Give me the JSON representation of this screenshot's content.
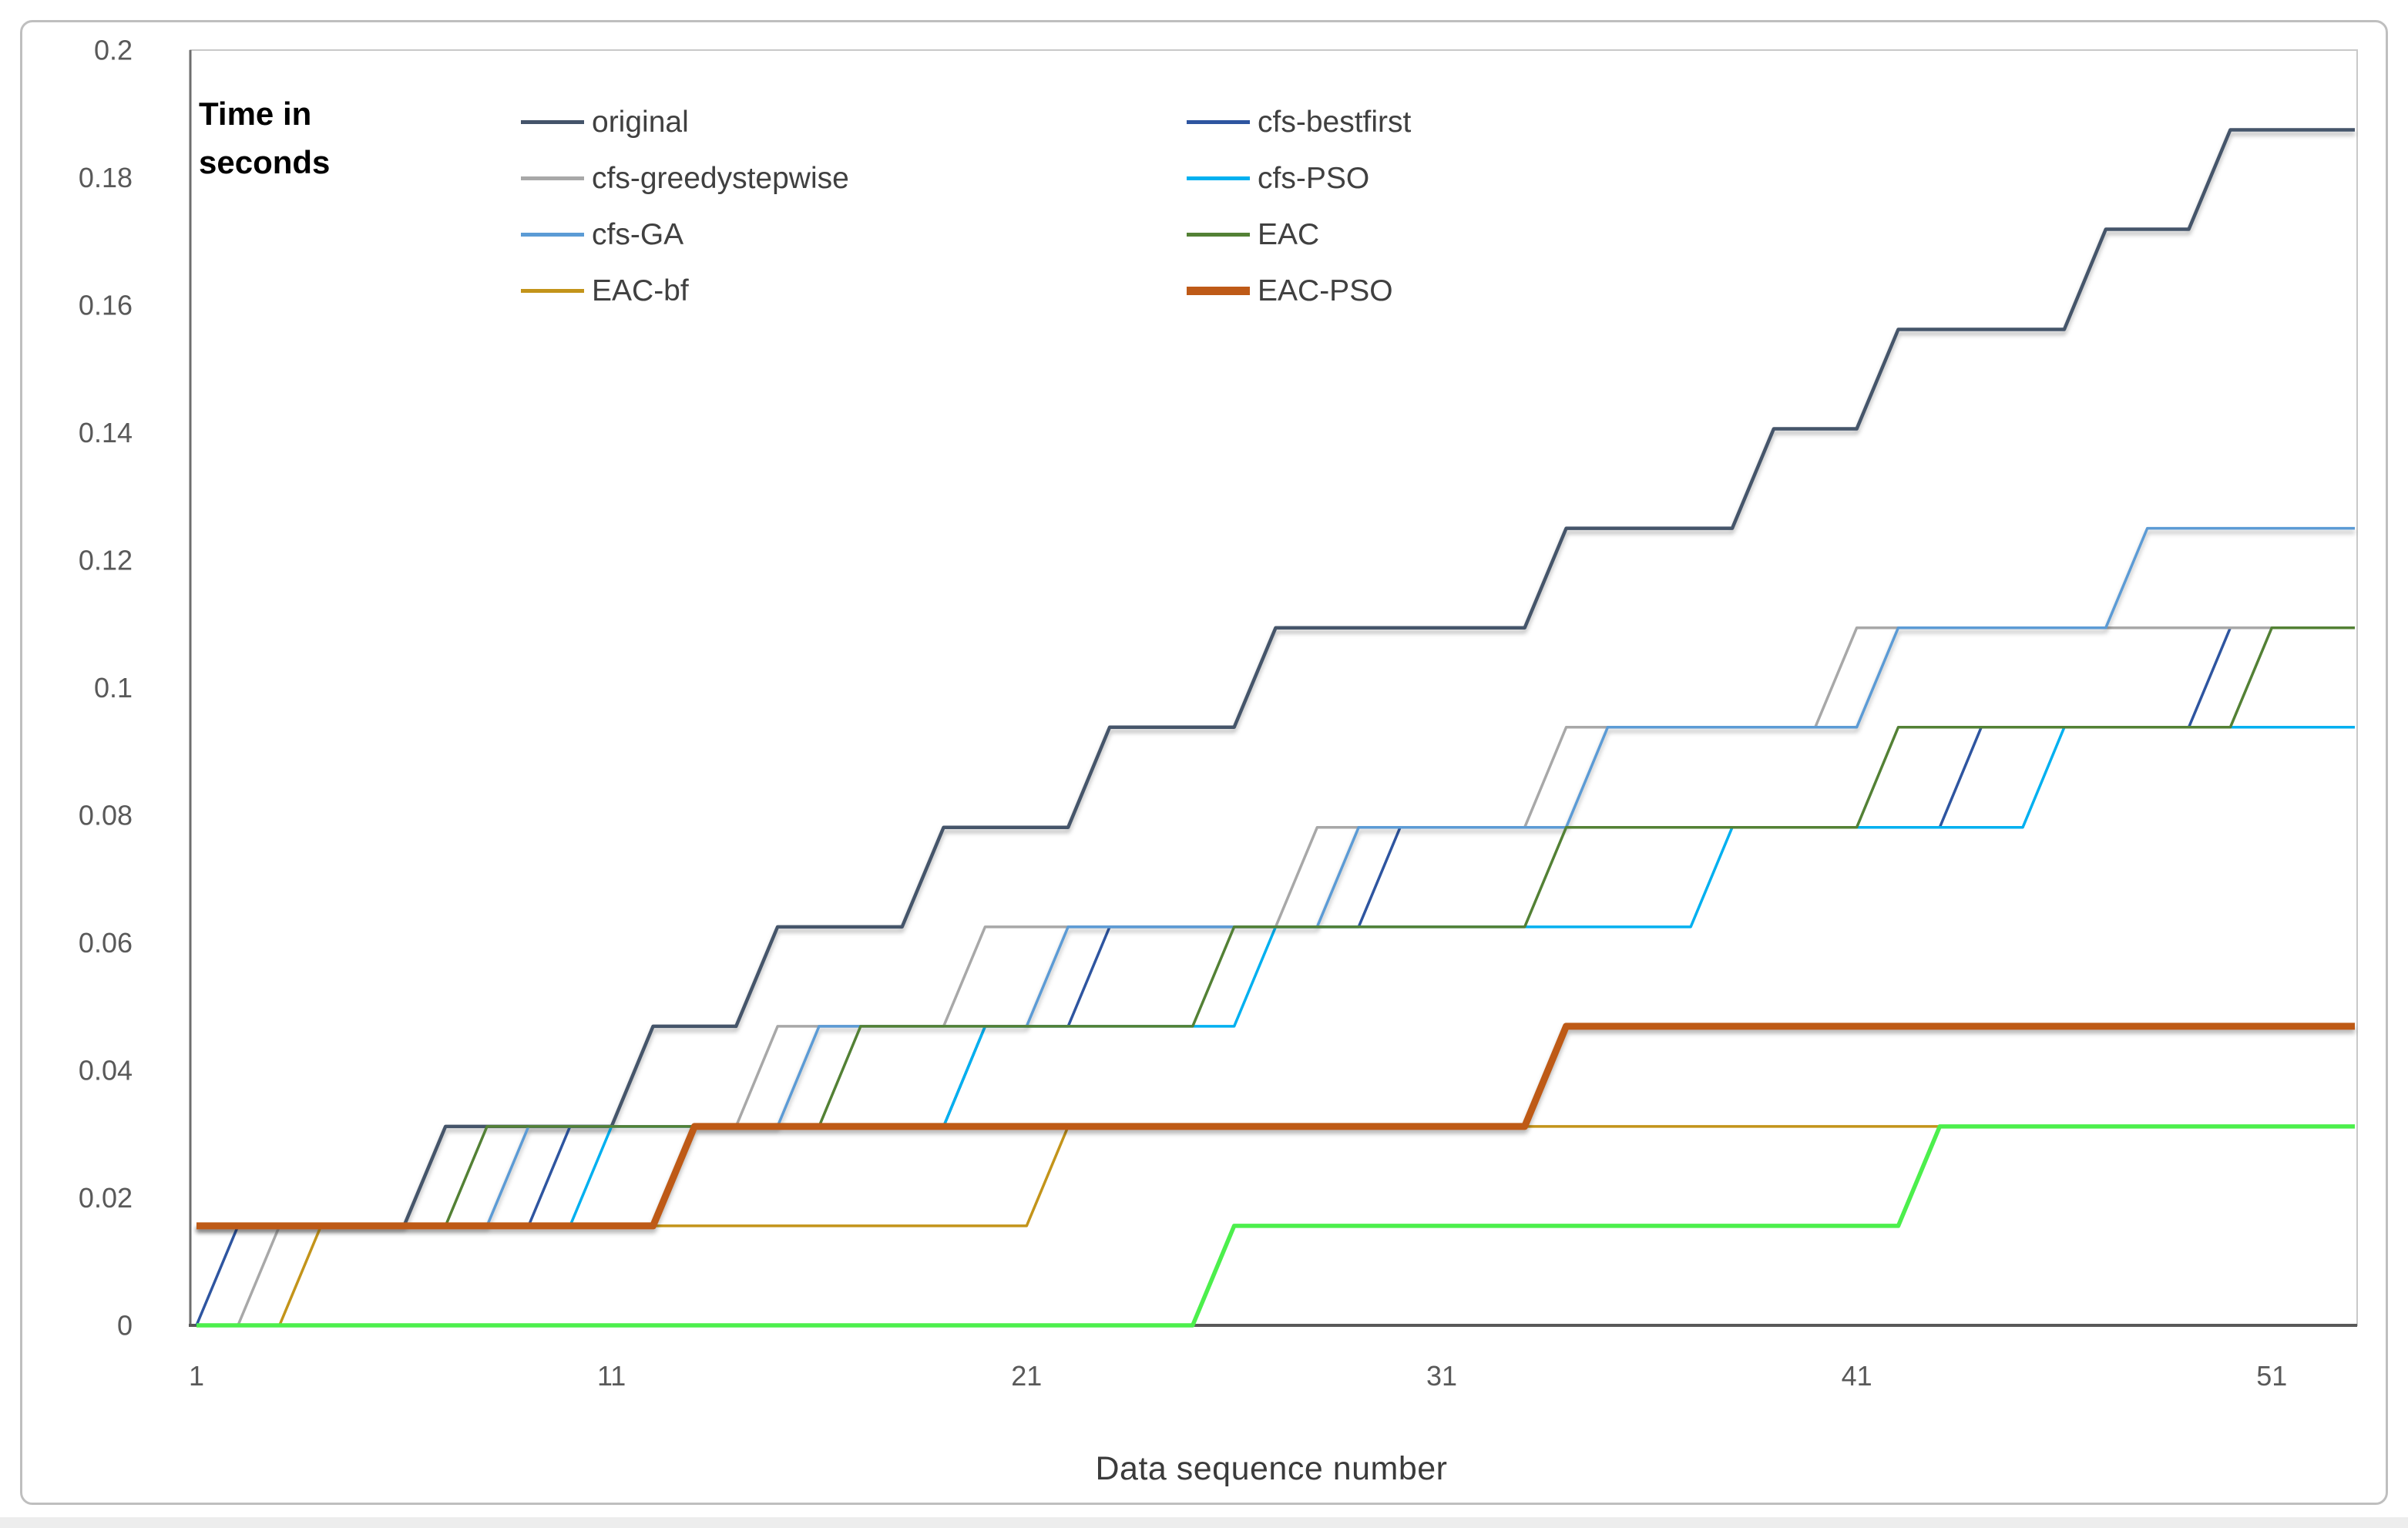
{
  "figure": {
    "background": "#ffffff",
    "border_color": "#bfbfbf",
    "axis_line_color": "#595959",
    "spine_color": "#6e6e6e",
    "frame_color": "#c9c9c9",
    "tick_label_color": "#595959"
  },
  "chart_data": {
    "type": "line",
    "ylabel": "Time in seconds",
    "xlabel": "Data sequence number",
    "x_range": [
      1,
      53
    ],
    "x_ticks": [
      1,
      11,
      21,
      31,
      41,
      51
    ],
    "y_ticks": [
      "0",
      "0.02",
      "0.04",
      "0.06",
      "0.08",
      "0.1",
      "0.12",
      "0.14",
      "0.16",
      "0.18",
      "0.2"
    ],
    "y_max": 0.2,
    "grid": false,
    "step_unit": 0.0156,
    "legend_position": "top-inside-two-columns",
    "series": [
      {
        "name": "original",
        "color": "#44546A",
        "width": 4.5,
        "shadow": true,
        "legend_column": 1,
        "start": 0.0156,
        "steps": [
          [
            7,
            0.0312
          ],
          [
            12,
            0.0469
          ],
          [
            15,
            0.0625
          ],
          [
            19,
            0.0781
          ],
          [
            23,
            0.0938
          ],
          [
            27,
            0.1094
          ],
          [
            34,
            0.125
          ],
          [
            39,
            0.1406
          ],
          [
            42,
            0.1562
          ],
          [
            47,
            0.1719
          ],
          [
            50,
            0.1875
          ]
        ]
      },
      {
        "name": "cfs-bestfirst",
        "color": "#2E55A0",
        "width": 3.5,
        "shadow": false,
        "legend_column": 2,
        "start": 0,
        "steps": [
          [
            2,
            0.0156
          ],
          [
            10,
            0.0312
          ],
          [
            20,
            0.0469
          ],
          [
            23,
            0.0625
          ],
          [
            30,
            0.0781
          ],
          [
            44,
            0.0938
          ],
          [
            50,
            0.1094
          ]
        ]
      },
      {
        "name": "cfs-greedystepwise",
        "color": "#A8A8A8",
        "width": 3.5,
        "shadow": false,
        "legend_column": 1,
        "start": 0,
        "steps": [
          [
            3,
            0.0156
          ],
          [
            13,
            0.0312
          ],
          [
            15,
            0.0469
          ],
          [
            20,
            0.0625
          ],
          [
            28,
            0.0781
          ],
          [
            34,
            0.0938
          ],
          [
            41,
            0.1094
          ]
        ]
      },
      {
        "name": "cfs-PSO",
        "color": "#00B0F0",
        "width": 3.5,
        "shadow": false,
        "legend_column": 2,
        "start": 0.0156,
        "steps": [
          [
            11,
            0.0312
          ],
          [
            20,
            0.0469
          ],
          [
            27,
            0.0625
          ],
          [
            38,
            0.0781
          ],
          [
            46,
            0.0938
          ]
        ]
      },
      {
        "name": "cfs-GA",
        "color": "#5B9BD5",
        "width": 3.5,
        "shadow": true,
        "legend_column": 1,
        "start": 0.0156,
        "steps": [
          [
            9,
            0.0312
          ],
          [
            16,
            0.0469
          ],
          [
            22,
            0.0625
          ],
          [
            29,
            0.0781
          ],
          [
            35,
            0.0938
          ],
          [
            42,
            0.1094
          ],
          [
            48,
            0.125
          ]
        ]
      },
      {
        "name": "EAC",
        "color": "#538135",
        "width": 3.5,
        "shadow": false,
        "legend_column": 2,
        "start": 0.0156,
        "steps": [
          [
            8,
            0.0312
          ],
          [
            17,
            0.0469
          ],
          [
            26,
            0.0625
          ],
          [
            34,
            0.0781
          ],
          [
            42,
            0.0938
          ],
          [
            51,
            0.1094
          ]
        ]
      },
      {
        "name": "EAC-bf",
        "color": "#C3941A",
        "width": 3.5,
        "shadow": false,
        "legend_column": 1,
        "start": 0,
        "steps": [
          [
            4,
            0.0156
          ],
          [
            22,
            0.0312
          ]
        ]
      },
      {
        "name": "EAC-PSO",
        "color": "#BE5A17",
        "width": 9,
        "shadow": true,
        "legend_column": 2,
        "start": 0.0156,
        "steps": [
          [
            13,
            0.0312
          ],
          [
            34,
            0.0469
          ]
        ]
      },
      {
        "name": "unlabeled",
        "color": "#4CEF4C",
        "width": 5.5,
        "shadow": false,
        "legend_column": null,
        "start": 0,
        "steps": [
          [
            26,
            0.0156
          ],
          [
            43,
            0.0312
          ]
        ]
      }
    ]
  }
}
